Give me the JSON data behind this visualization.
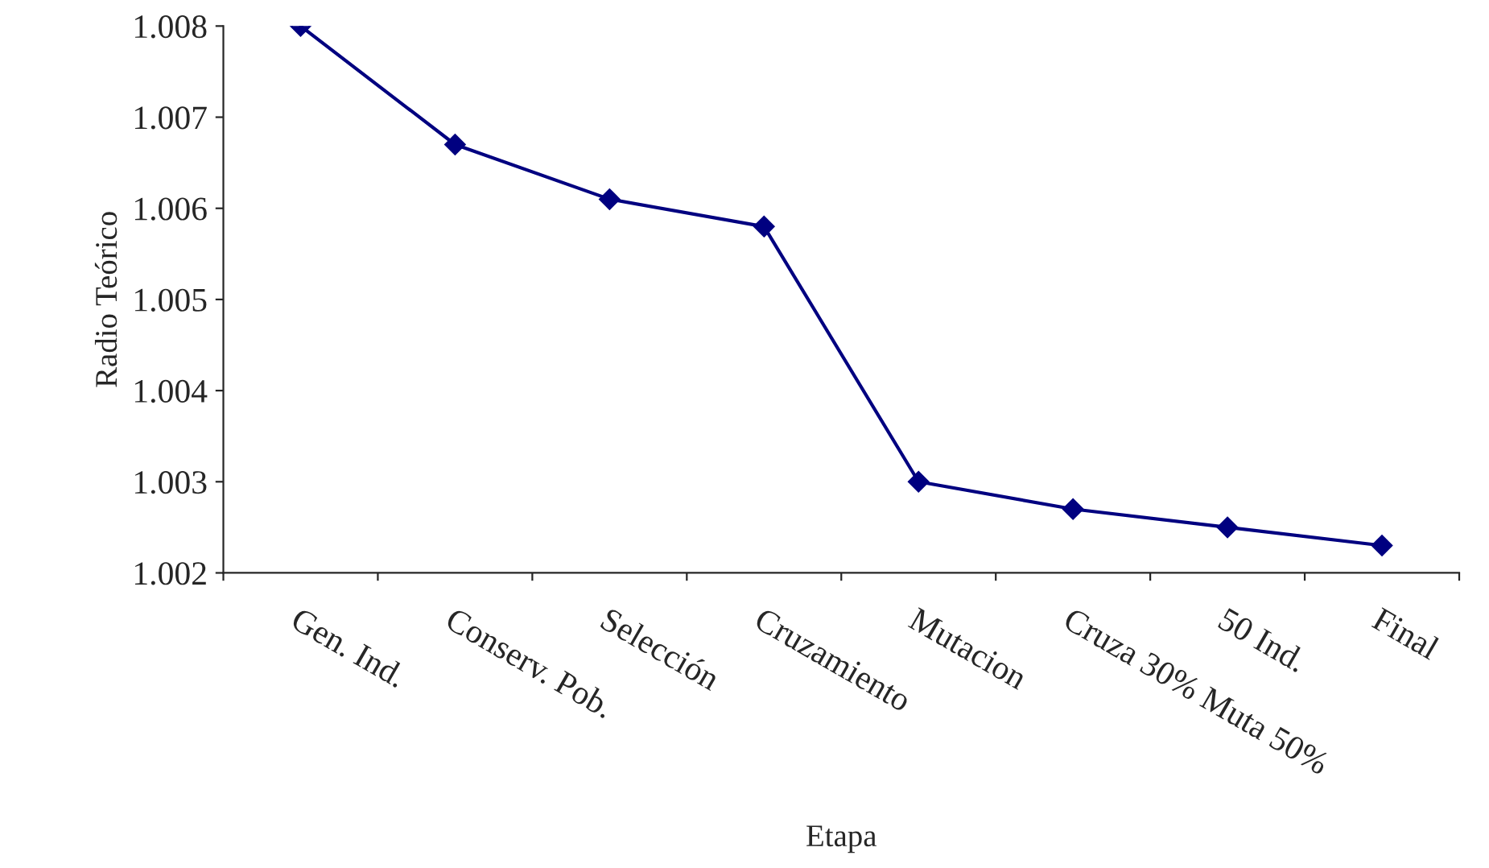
{
  "chart_data": {
    "type": "line",
    "xlabel": "Etapa",
    "ylabel": "Radio Teórico",
    "categories": [
      "Gen. Ind.",
      "Conserv. Pob.",
      "Selección",
      "Cruzamiento",
      "Mutacion",
      "Cruza 30% Muta 50%",
      "50 Ind.",
      "Final"
    ],
    "series": [
      {
        "color": "#000080",
        "values": [
          1.008,
          1.0067,
          1.0061,
          1.0058,
          1.003,
          1.0027,
          1.0025,
          1.0023
        ]
      }
    ],
    "ylim": [
      1.002,
      1.008
    ],
    "yticks": [
      1.002,
      1.003,
      1.004,
      1.005,
      1.006,
      1.007,
      1.008
    ],
    "marker": "diamond",
    "line_style": "solid",
    "grid": false,
    "legend": false
  }
}
